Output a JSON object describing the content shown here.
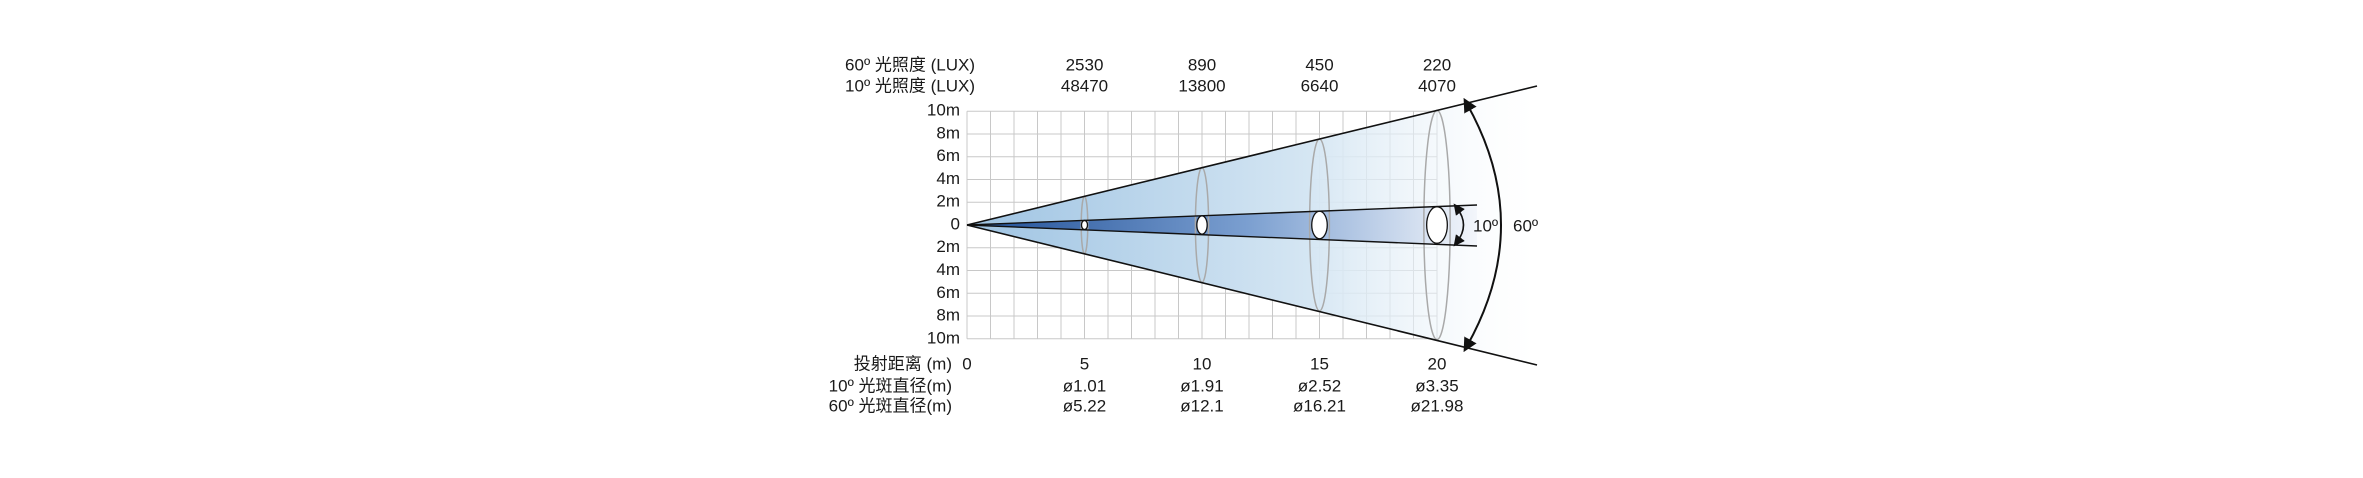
{
  "illuminance": {
    "labels": [
      "60º 光照度 (LUX)",
      "10º 光照度 (LUX)"
    ],
    "rows": [
      [
        "2530",
        "890",
        "450",
        "220"
      ],
      [
        "48470",
        "13800",
        "6640",
        "4070"
      ]
    ]
  },
  "y_axis": {
    "labels": [
      "10m",
      "8m",
      "6m",
      "4m",
      "2m",
      "0",
      "2m",
      "4m",
      "6m",
      "8m",
      "10m"
    ]
  },
  "distance": {
    "label": "投射距离 (m)",
    "values": [
      "0",
      "5",
      "10",
      "15",
      "20"
    ]
  },
  "diameter": {
    "labels": [
      "10º 光斑直径(m)",
      "60º 光斑直径(m)"
    ],
    "rows": [
      [
        "ø1.01",
        "ø1.91",
        "ø2.52",
        "ø3.35"
      ],
      [
        "ø5.22",
        "ø12.1",
        "ø16.21",
        "ø21.98"
      ]
    ]
  },
  "angles": {
    "narrow": "10º",
    "wide": "60º"
  }
}
